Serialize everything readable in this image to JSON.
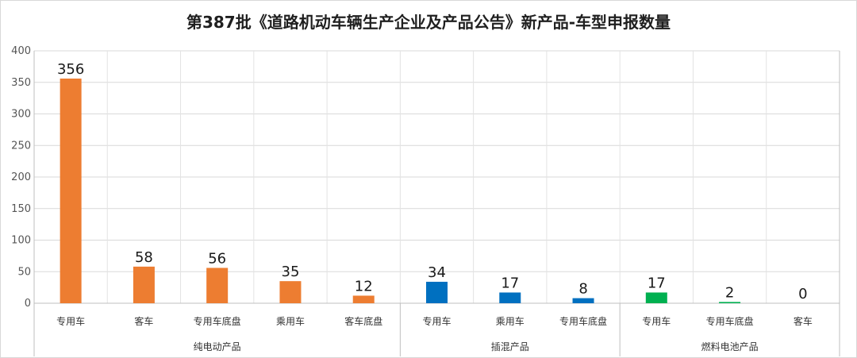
{
  "chart_data": {
    "type": "bar",
    "title": "第387批《道路机动车辆生产企业及产品公告》新产品-车型申报数量",
    "ylim": [
      0,
      400
    ],
    "yticks": [
      0,
      50,
      100,
      150,
      200,
      250,
      300,
      350,
      400
    ],
    "grid": true,
    "categories": [
      "专用车",
      "客车",
      "专用车底盘",
      "乘用车",
      "客车底盘",
      "专用车",
      "乘用车",
      "专用车底盘",
      "专用车",
      "专用车底盘",
      "客车"
    ],
    "values": [
      356,
      58,
      56,
      35,
      12,
      34,
      17,
      8,
      17,
      2,
      0
    ],
    "groups": [
      {
        "name": "纯电动产品",
        "count": 5,
        "color": "#ed7d31"
      },
      {
        "name": "插混产品",
        "count": 3,
        "color": "#0070c0"
      },
      {
        "name": "燃料电池产品",
        "count": 3,
        "color": "#00b050"
      }
    ]
  }
}
